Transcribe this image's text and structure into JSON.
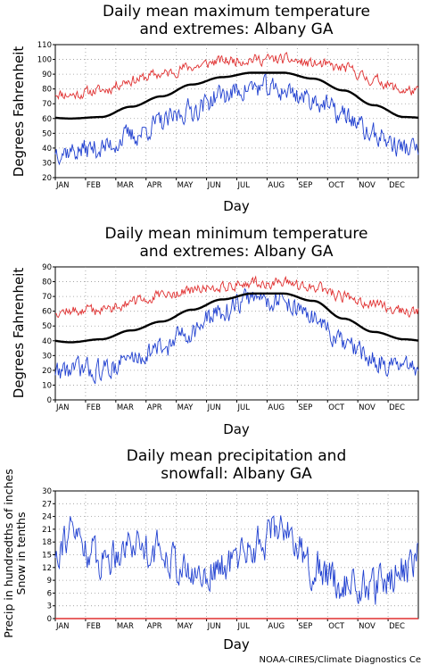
{
  "credit": "NOAA-CIRES/Climate Diagnostics Ce",
  "colors": {
    "max_extreme": "#e03030",
    "mean": "#000000",
    "min_extreme": "#2040d0",
    "precip": "#2040d0",
    "snow": "#e03030",
    "grid": "#9a9a9a"
  },
  "chart_data": [
    {
      "type": "line",
      "title_line1": "Daily mean maximum temperature",
      "title_line2": "and extremes: Albany GA",
      "xlabel": "Day",
      "ylabel": "Degrees Fahrenheit",
      "months": [
        "JAN",
        "FEB",
        "MAR",
        "APR",
        "MAY",
        "JUN",
        "JUL",
        "AUG",
        "SEP",
        "OCT",
        "NOV",
        "DEC"
      ],
      "ylim": [
        20,
        110
      ],
      "yticks": [
        "20",
        "30",
        "40",
        "50",
        "60",
        "70",
        "80",
        "90",
        "100",
        "110"
      ],
      "grid": true,
      "mean_monthly": [
        60,
        61,
        68,
        75,
        83,
        88,
        91,
        91,
        87,
        79,
        69,
        61
      ],
      "max_extreme_monthly": [
        76,
        79,
        86,
        90,
        95,
        99,
        100,
        100,
        97,
        94,
        86,
        79
      ],
      "min_extreme_monthly": [
        38,
        40,
        48,
        57,
        66,
        76,
        81,
        79,
        73,
        62,
        49,
        40
      ],
      "series": [
        {
          "name": "",
          "role": "max_extreme"
        },
        {
          "name": "",
          "role": "mean"
        },
        {
          "name": "",
          "role": "min_extreme"
        }
      ]
    },
    {
      "type": "line",
      "title_line1": "Daily mean minimum temperature",
      "title_line2": "and extremes: Albany GA",
      "xlabel": "Day",
      "ylabel": "Degrees Fahrenheit",
      "months": [
        "JAN",
        "FEB",
        "MAR",
        "APR",
        "MAY",
        "JUN",
        "JUL",
        "AUG",
        "SEP",
        "OCT",
        "NOV",
        "DEC"
      ],
      "ylim": [
        0,
        90
      ],
      "yticks": [
        "0",
        "10",
        "20",
        "30",
        "40",
        "50",
        "60",
        "70",
        "80",
        "90"
      ],
      "grid": true,
      "mean_monthly": [
        39,
        41,
        47,
        53,
        61,
        68,
        72,
        72,
        67,
        55,
        46,
        41
      ],
      "max_extreme_monthly": [
        60,
        61,
        66,
        70,
        74,
        77,
        79,
        79,
        76,
        70,
        65,
        60
      ],
      "min_extreme_monthly": [
        20,
        20,
        28,
        35,
        47,
        60,
        69,
        67,
        56,
        37,
        27,
        20
      ],
      "series": [
        {
          "name": "",
          "role": "max_extreme"
        },
        {
          "name": "",
          "role": "mean"
        },
        {
          "name": "",
          "role": "min_extreme"
        }
      ]
    },
    {
      "type": "line",
      "title_line1": "Daily mean precipitation and",
      "title_line2": "snowfall: Albany GA",
      "xlabel": "Day",
      "ylabel_line1": "Precip in hundredths of inches",
      "ylabel_line2": "Snow in tenths",
      "months": [
        "JAN",
        "FEB",
        "MAR",
        "APR",
        "MAY",
        "JUN",
        "JUL",
        "AUG",
        "SEP",
        "OCT",
        "NOV",
        "DEC"
      ],
      "ylim": [
        0,
        30
      ],
      "yticks": [
        "0",
        "3",
        "6",
        "9",
        "12",
        "15",
        "18",
        "21",
        "24",
        "27",
        "30"
      ],
      "grid": true,
      "precip_monthly": [
        20,
        14,
        18,
        16,
        10,
        12,
        17,
        22,
        12,
        8,
        7,
        12
      ],
      "snow_monthly": [
        0,
        0,
        0,
        0,
        0,
        0,
        0,
        0,
        0,
        0,
        0,
        0
      ],
      "series": [
        {
          "name": "",
          "role": "precip"
        },
        {
          "name": "",
          "role": "snow"
        }
      ]
    }
  ]
}
